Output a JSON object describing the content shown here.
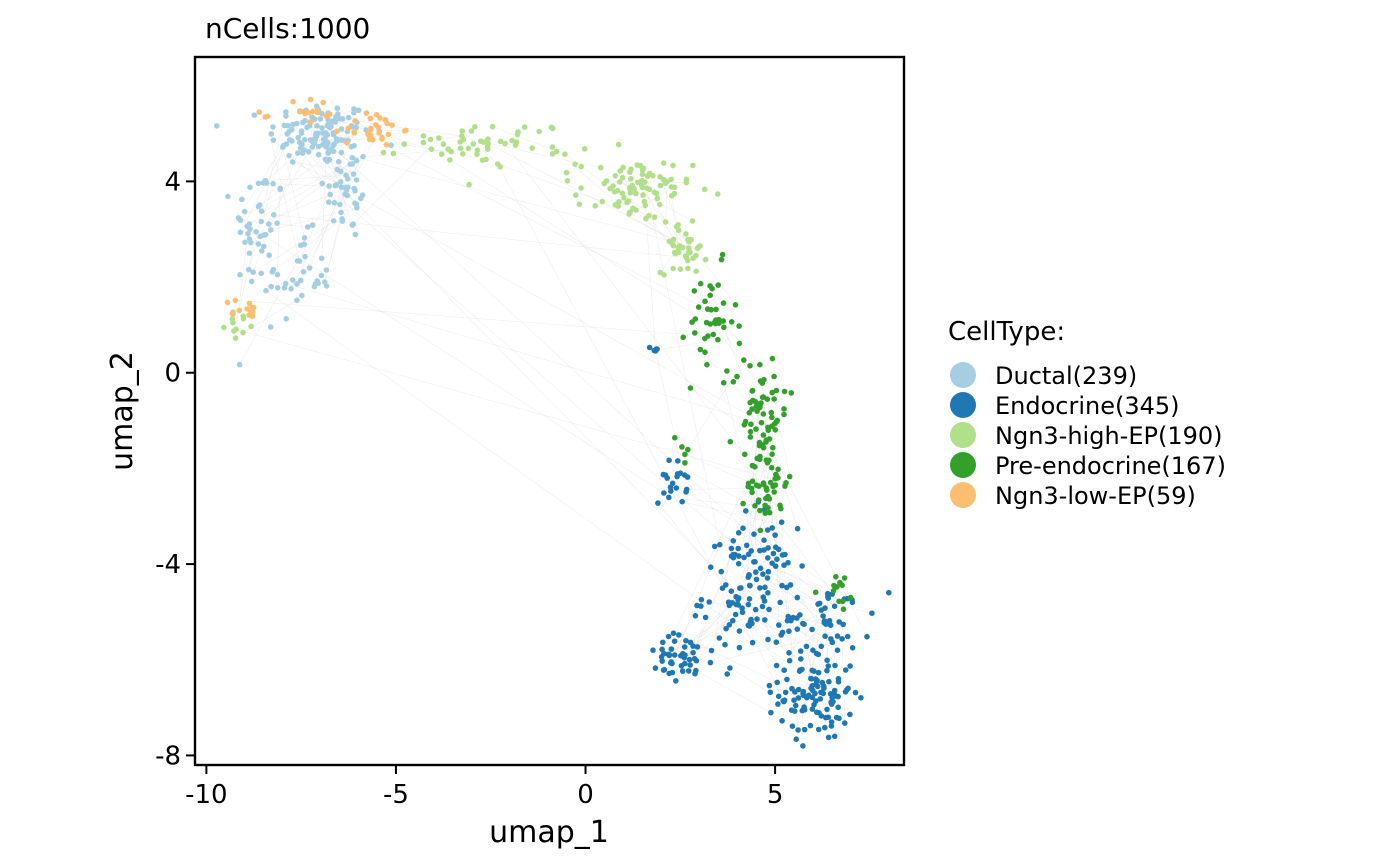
{
  "title": "nCells:1000",
  "chart_data": {
    "type": "scatter",
    "title": "nCells:1000",
    "xlabel": "umap_1",
    "ylabel": "umap_2",
    "xlim": [
      -10.3,
      8.4
    ],
    "ylim": [
      -8.2,
      6.6
    ],
    "xticks": [
      -10,
      -5,
      0,
      5
    ],
    "yticks": [
      4,
      0,
      -4,
      -8
    ],
    "xtick_labels": [
      "-10",
      "-5",
      "0",
      "5"
    ],
    "ytick_labels": [
      "4",
      "0",
      "-4",
      "-8"
    ],
    "grid": false,
    "legend_title": "CellType:",
    "legend_position": "right",
    "series": [
      {
        "name": "Ductal(239)",
        "color": "#A6CEE3",
        "count": 239,
        "clusters": [
          {
            "cx": -7.0,
            "cy": 5.0,
            "sx": 0.9,
            "sy": 0.45,
            "n": 120
          },
          {
            "cx": -6.3,
            "cy": 3.8,
            "sx": 0.4,
            "sy": 0.7,
            "n": 40
          },
          {
            "cx": -8.6,
            "cy": 3.0,
            "sx": 0.45,
            "sy": 0.9,
            "n": 45
          },
          {
            "cx": -7.6,
            "cy": 2.0,
            "sx": 0.6,
            "sy": 0.6,
            "n": 34
          }
        ]
      },
      {
        "name": "Endocrine(345)",
        "color": "#1F78B4",
        "count": 345,
        "clusters": [
          {
            "cx": 6.1,
            "cy": -6.7,
            "sx": 0.65,
            "sy": 0.65,
            "n": 110
          },
          {
            "cx": 4.3,
            "cy": -4.6,
            "sx": 0.8,
            "sy": 0.9,
            "n": 110
          },
          {
            "cx": 2.5,
            "cy": -6.0,
            "sx": 0.6,
            "sy": 0.35,
            "n": 45
          },
          {
            "cx": 6.4,
            "cy": -5.1,
            "sx": 0.8,
            "sy": 0.5,
            "n": 45
          },
          {
            "cx": 2.3,
            "cy": -2.3,
            "sx": 0.25,
            "sy": 0.3,
            "n": 20
          },
          {
            "cx": 1.8,
            "cy": 0.5,
            "sx": 0.1,
            "sy": 0.1,
            "n": 5
          },
          {
            "cx": 4.5,
            "cy": -3.3,
            "sx": 0.4,
            "sy": 0.4,
            "n": 10
          }
        ]
      },
      {
        "name": "Ngn3-high-EP(190)",
        "color": "#B2DF8A",
        "count": 190,
        "clusters": [
          {
            "cx": -2.5,
            "cy": 4.8,
            "sx": 1.5,
            "sy": 0.3,
            "n": 55
          },
          {
            "cx": 1.3,
            "cy": 3.8,
            "sx": 1.0,
            "sy": 0.45,
            "n": 85
          },
          {
            "cx": 2.6,
            "cy": 2.6,
            "sx": 0.4,
            "sy": 0.35,
            "n": 38
          },
          {
            "cx": -9.1,
            "cy": 1.0,
            "sx": 0.25,
            "sy": 0.15,
            "n": 12
          }
        ]
      },
      {
        "name": "Pre-endocrine(167)",
        "color": "#33A02C",
        "count": 167,
        "clusters": [
          {
            "cx": 3.3,
            "cy": 1.0,
            "sx": 0.45,
            "sy": 0.8,
            "n": 40
          },
          {
            "cx": 4.6,
            "cy": -0.8,
            "sx": 0.5,
            "sy": 0.8,
            "n": 65
          },
          {
            "cx": 4.8,
            "cy": -2.3,
            "sx": 0.35,
            "sy": 0.6,
            "n": 45
          },
          {
            "cx": 6.6,
            "cy": -4.6,
            "sx": 0.4,
            "sy": 0.3,
            "n": 12
          },
          {
            "cx": 2.6,
            "cy": -1.5,
            "sx": 0.2,
            "sy": 0.3,
            "n": 5
          }
        ]
      },
      {
        "name": "Ngn3-low-EP(59)",
        "color": "#FDBF6F",
        "count": 59,
        "clusters": [
          {
            "cx": -5.6,
            "cy": 5.1,
            "sx": 0.5,
            "sy": 0.25,
            "n": 30
          },
          {
            "cx": -7.2,
            "cy": 5.4,
            "sx": 0.6,
            "sy": 0.25,
            "n": 17
          },
          {
            "cx": -9.0,
            "cy": 1.3,
            "sx": 0.25,
            "sy": 0.2,
            "n": 12
          }
        ]
      }
    ]
  }
}
